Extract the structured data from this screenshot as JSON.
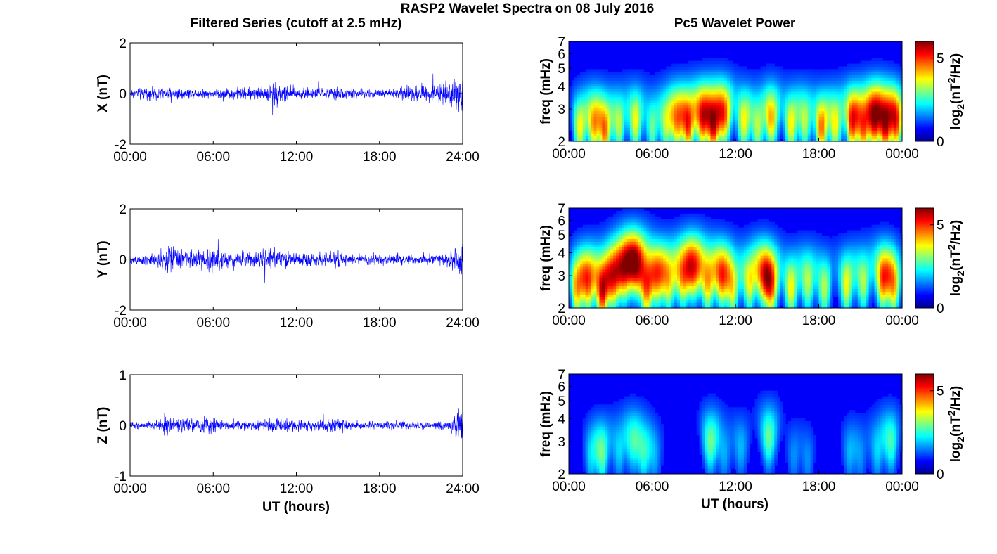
{
  "figure": {
    "suptitle": "RASP2 Wavelet Spectra on 08 July 2016",
    "left_title": "Filtered Series (cutoff at 2.5 mHz)",
    "right_title": "Pc5 Wavelet Power",
    "xlabel": "UT (hours)"
  },
  "chart_data": [
    {
      "type": "line",
      "panel": "X",
      "ylabel": "X (nT)",
      "xlabel": "",
      "xlim": [
        0,
        24
      ],
      "ylim": [
        -2,
        2
      ],
      "x_ticks": [
        "00:00",
        "06:00",
        "12:00",
        "18:00",
        "24:00"
      ],
      "y_ticks": [
        "-2",
        "0",
        "2"
      ],
      "series_color": "#0000ff",
      "envelope": {
        "x": [
          0,
          1,
          2,
          3,
          4,
          5,
          6,
          7,
          8,
          9,
          10,
          10.5,
          11,
          12,
          13,
          14,
          15,
          16,
          17,
          18,
          19,
          20,
          21,
          22,
          23,
          24
        ],
        "amplitude": [
          0.3,
          0.3,
          0.35,
          0.4,
          0.3,
          0.25,
          0.25,
          0.3,
          0.35,
          0.35,
          0.5,
          0.85,
          0.6,
          0.35,
          0.3,
          0.3,
          0.35,
          0.3,
          0.25,
          0.25,
          0.3,
          0.4,
          0.55,
          0.5,
          0.55,
          1.2
        ]
      }
    },
    {
      "type": "line",
      "panel": "Y",
      "ylabel": "Y (nT)",
      "xlabel": "",
      "xlim": [
        0,
        24
      ],
      "ylim": [
        -2,
        2
      ],
      "x_ticks": [
        "00:00",
        "06:00",
        "12:00",
        "18:00",
        "24:00"
      ],
      "y_ticks": [
        "-2",
        "0",
        "2"
      ],
      "series_color": "#0000ff",
      "envelope": {
        "x": [
          0,
          1,
          2,
          2.5,
          3,
          4,
          5,
          6,
          7,
          8,
          9,
          10,
          11,
          12,
          13,
          14,
          15,
          16,
          17,
          18,
          19,
          20,
          21,
          22,
          23,
          24
        ],
        "amplitude": [
          0.3,
          0.35,
          0.4,
          0.9,
          0.7,
          0.5,
          0.6,
          0.7,
          0.5,
          0.45,
          0.45,
          0.7,
          0.5,
          0.4,
          0.4,
          0.4,
          0.55,
          0.3,
          0.3,
          0.3,
          0.3,
          0.3,
          0.3,
          0.3,
          0.45,
          1.0
        ]
      }
    },
    {
      "type": "line",
      "panel": "Z",
      "ylabel": "Z (nT)",
      "xlabel": "UT (hours)",
      "xlim": [
        0,
        24
      ],
      "ylim": [
        -1,
        1
      ],
      "x_ticks": [
        "00:00",
        "06:00",
        "12:00",
        "18:00",
        "24:00"
      ],
      "y_ticks": [
        "-1",
        "0",
        "1"
      ],
      "series_color": "#0000ff",
      "envelope": {
        "x": [
          0,
          1,
          2,
          2.5,
          3,
          4,
          5,
          6,
          7,
          8,
          9,
          10,
          11,
          12,
          13,
          14,
          15,
          16,
          17,
          18,
          19,
          20,
          21,
          22,
          23,
          24
        ],
        "amplitude": [
          0.1,
          0.1,
          0.15,
          0.3,
          0.2,
          0.2,
          0.22,
          0.25,
          0.15,
          0.15,
          0.15,
          0.18,
          0.2,
          0.15,
          0.15,
          0.18,
          0.25,
          0.12,
          0.12,
          0.12,
          0.12,
          0.12,
          0.12,
          0.12,
          0.15,
          0.6
        ]
      }
    },
    {
      "type": "heatmap",
      "panel": "X",
      "ylabel": "freq (mHz)",
      "xlabel": "",
      "xlim": [
        0,
        24
      ],
      "ylim": [
        2,
        7
      ],
      "yscale": "log",
      "x_ticks": [
        "00:00",
        "06:00",
        "12:00",
        "18:00",
        "00:00"
      ],
      "y_ticks": [
        "2",
        "3",
        "4",
        "5",
        "6",
        "7"
      ],
      "colorbar": {
        "label": "log2(nT^2/Hz)",
        "range": [
          0,
          6
        ],
        "ticks": [
          "0",
          "5"
        ]
      },
      "blobs": [
        [
          0.8,
          2.4,
          3.5
        ],
        [
          1.8,
          2.5,
          4.0
        ],
        [
          2.6,
          2.3,
          4.5
        ],
        [
          3.6,
          2.5,
          3.0
        ],
        [
          4.8,
          2.6,
          3.5
        ],
        [
          6.0,
          2.4,
          2.5
        ],
        [
          7.0,
          2.5,
          3.0
        ],
        [
          7.8,
          2.6,
          4.0
        ],
        [
          8.6,
          2.5,
          5.0
        ],
        [
          9.6,
          2.7,
          5.0
        ],
        [
          10.4,
          2.5,
          5.5
        ],
        [
          11.2,
          2.8,
          4.5
        ],
        [
          12.6,
          2.6,
          3.5
        ],
        [
          13.6,
          2.4,
          3.0
        ],
        [
          14.6,
          2.7,
          4.0
        ],
        [
          16.0,
          2.5,
          3.5
        ],
        [
          17.0,
          2.6,
          3.0
        ],
        [
          18.2,
          2.4,
          4.5
        ],
        [
          19.2,
          2.5,
          3.5
        ],
        [
          20.4,
          2.6,
          5.0
        ],
        [
          21.2,
          2.4,
          4.5
        ],
        [
          22.0,
          2.7,
          5.5
        ],
        [
          22.8,
          2.5,
          5.5
        ],
        [
          23.6,
          2.6,
          5.0
        ]
      ]
    },
    {
      "type": "heatmap",
      "panel": "Y",
      "ylabel": "freq (mHz)",
      "xlabel": "",
      "xlim": [
        0,
        24
      ],
      "ylim": [
        2,
        7
      ],
      "yscale": "log",
      "x_ticks": [
        "00:00",
        "06:00",
        "12:00",
        "18:00",
        "00:00"
      ],
      "y_ticks": [
        "2",
        "3",
        "4",
        "5",
        "6",
        "7"
      ],
      "colorbar": {
        "label": "log2(nT^2/Hz)",
        "range": [
          0,
          6
        ],
        "ticks": [
          "0",
          "5"
        ]
      },
      "blobs": [
        [
          0.6,
          2.6,
          4.0
        ],
        [
          1.4,
          2.8,
          4.5
        ],
        [
          2.4,
          2.5,
          5.5
        ],
        [
          3.2,
          2.9,
          4.5
        ],
        [
          4.0,
          3.2,
          4.5
        ],
        [
          4.8,
          3.5,
          5.0
        ],
        [
          5.6,
          2.6,
          4.5
        ],
        [
          6.4,
          3.0,
          4.0
        ],
        [
          7.2,
          2.8,
          3.5
        ],
        [
          8.2,
          3.0,
          4.0
        ],
        [
          9.0,
          3.3,
          4.5
        ],
        [
          10.0,
          2.8,
          4.0
        ],
        [
          11.0,
          3.0,
          4.5
        ],
        [
          11.8,
          2.6,
          3.5
        ],
        [
          13.0,
          2.8,
          3.5
        ],
        [
          14.0,
          3.0,
          4.0
        ],
        [
          14.6,
          2.7,
          4.5
        ],
        [
          16.0,
          2.6,
          3.5
        ],
        [
          17.2,
          2.8,
          3.0
        ],
        [
          18.4,
          2.6,
          3.0
        ],
        [
          20.0,
          2.7,
          3.5
        ],
        [
          21.2,
          2.8,
          3.0
        ],
        [
          22.6,
          2.9,
          4.5
        ],
        [
          23.4,
          2.7,
          4.0
        ]
      ]
    },
    {
      "type": "heatmap",
      "panel": "Z",
      "ylabel": "freq (mHz)",
      "xlabel": "UT (hours)",
      "xlim": [
        0,
        24
      ],
      "ylim": [
        2,
        7
      ],
      "yscale": "log",
      "x_ticks": [
        "00:00",
        "06:00",
        "12:00",
        "18:00",
        "00:00"
      ],
      "y_ticks": [
        "2",
        "3",
        "4",
        "5",
        "6",
        "7"
      ],
      "colorbar": {
        "label": "log2(nT^2/Hz)",
        "range": [
          0,
          6
        ],
        "ticks": [
          "0",
          "5"
        ]
      },
      "blobs": [
        [
          1.6,
          2.5,
          1.5
        ],
        [
          2.4,
          2.6,
          2.5
        ],
        [
          3.6,
          2.7,
          1.5
        ],
        [
          4.6,
          3.0,
          2.0
        ],
        [
          5.4,
          2.6,
          2.0
        ],
        [
          6.2,
          2.5,
          1.2
        ],
        [
          10.2,
          3.0,
          2.5
        ],
        [
          11.2,
          2.6,
          1.2
        ],
        [
          12.4,
          2.8,
          1.3
        ],
        [
          14.4,
          3.2,
          2.5
        ],
        [
          16.2,
          2.5,
          1.0
        ],
        [
          17.2,
          2.4,
          1.0
        ],
        [
          20.2,
          2.6,
          1.2
        ],
        [
          21.0,
          2.5,
          1.0
        ],
        [
          22.2,
          2.7,
          1.5
        ],
        [
          23.2,
          3.0,
          2.2
        ]
      ]
    }
  ]
}
